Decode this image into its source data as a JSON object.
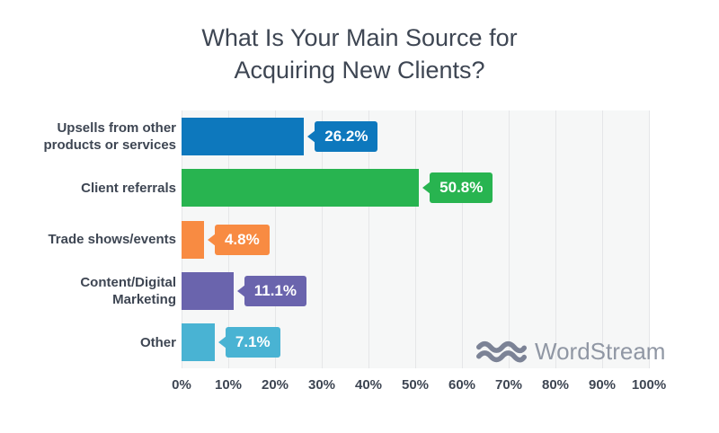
{
  "chart_data": {
    "type": "bar",
    "orientation": "horizontal",
    "title": "What Is Your Main Source for Acquiring New Clients?",
    "categories": [
      "Upsells from other products or services",
      "Client referrals",
      "Trade shows/events",
      "Content/Digital Marketing",
      "Other"
    ],
    "values": [
      26.2,
      50.8,
      4.8,
      11.1,
      7.1
    ],
    "value_labels": [
      "26.2%",
      "50.8%",
      "4.8%",
      "11.1%",
      "7.1%"
    ],
    "bar_colors": [
      "#0d78bd",
      "#28b450",
      "#f88b42",
      "#6a64ad",
      "#49b3d3"
    ],
    "xlim": [
      0,
      100
    ],
    "x_tick_labels": [
      "0%",
      "10%",
      "20%",
      "30%",
      "40%",
      "50%",
      "60%",
      "70%",
      "80%",
      "90%",
      "100%"
    ],
    "grid": "vertical",
    "legend": "none",
    "plot_background": "#f6f7f7",
    "gridline_color": "#e5e6e8",
    "text_color": "#3e4653"
  },
  "watermark": {
    "brand": "WordStream",
    "icon": "waves-icon",
    "icon_color": "#7c8396",
    "text_color": "#9097a4"
  }
}
